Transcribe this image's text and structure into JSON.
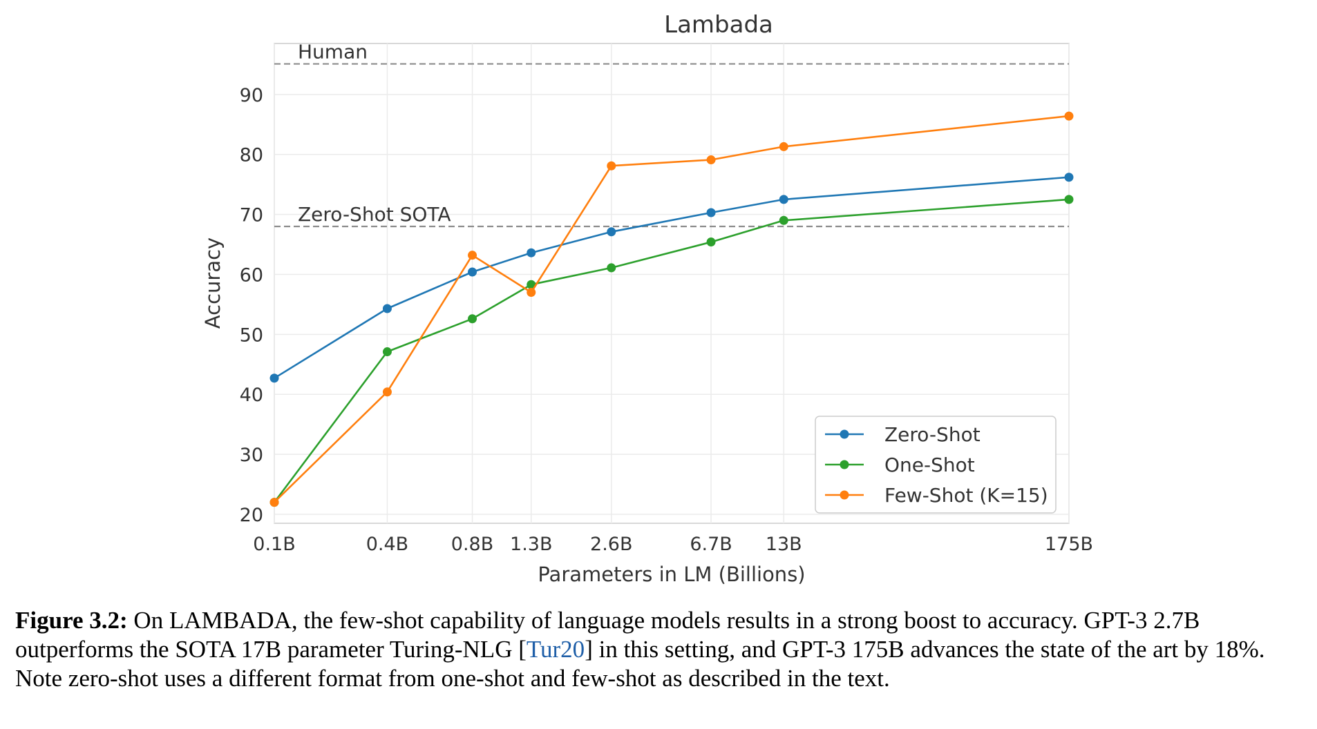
{
  "chart_data": {
    "type": "line",
    "title": "Lambada",
    "xlabel": "Parameters in LM (Billions)",
    "ylabel": "Accuracy",
    "x_scale": "log",
    "ylim": [
      18.5,
      98.5
    ],
    "y_ticks": [
      20,
      30,
      40,
      50,
      60,
      70,
      80,
      90
    ],
    "grid": true,
    "categories": [
      "0.1B",
      "0.4B",
      "0.8B",
      "1.3B",
      "2.6B",
      "6.7B",
      "13B",
      "175B"
    ],
    "x_values": [
      0.125,
      0.35,
      0.76,
      1.3,
      2.7,
      6.7,
      13,
      175
    ],
    "reference_lines": [
      {
        "label": "Human",
        "value": 95.1
      },
      {
        "label": "Zero-Shot SOTA",
        "value": 68.0
      }
    ],
    "legend_position": "lower-right",
    "series": [
      {
        "name": "Zero-Shot",
        "color": "#1f77b4",
        "values": [
          42.7,
          54.3,
          60.4,
          63.6,
          67.1,
          70.3,
          72.5,
          76.2
        ]
      },
      {
        "name": "One-Shot",
        "color": "#2ca02c",
        "values": [
          22.0,
          47.1,
          52.6,
          58.3,
          61.1,
          65.4,
          69.0,
          72.5
        ]
      },
      {
        "name": "Few-Shot (K=15)",
        "color": "#ff7f0e",
        "values": [
          22.0,
          40.4,
          63.2,
          57.0,
          78.1,
          79.1,
          81.3,
          86.4
        ]
      }
    ]
  },
  "caption": {
    "lead": "Figure 3.2:",
    "part1": " On LAMBADA, the few-shot capability of language models results in a strong boost to accuracy. GPT-3 2.7B outperforms the SOTA 17B parameter Turing-NLG [",
    "cite": "Tur20",
    "part2": "] in this setting, and GPT-3 175B advances the state of the art by 18%. Note zero-shot uses a different format from one-shot and few-shot as described in the text."
  }
}
